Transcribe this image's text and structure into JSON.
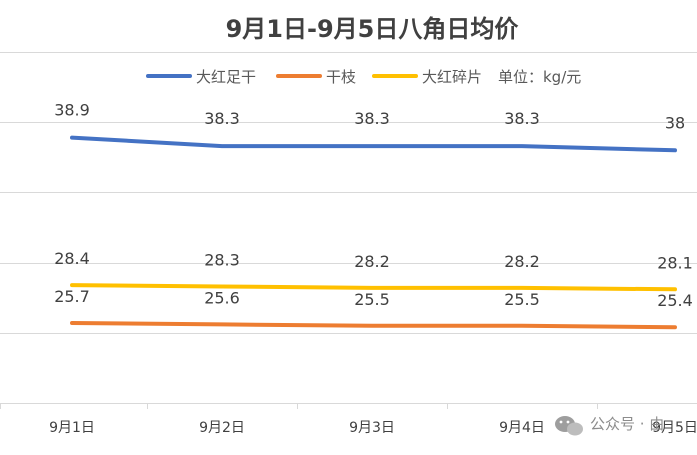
{
  "chart_data": {
    "type": "line",
    "title": "9月1日-9月5日八角日均价",
    "unit_note": "单位：kg/元",
    "categories": [
      "9月1日",
      "9月2日",
      "9月3日",
      "9月4日",
      "9月5日"
    ],
    "series": [
      {
        "name": "大红足干",
        "color": "#4472c4",
        "values": [
          38.9,
          38.3,
          38.3,
          38.3,
          38
        ]
      },
      {
        "name": "干枝",
        "color": "#ed7d31",
        "values": [
          25.7,
          25.6,
          25.5,
          25.5,
          25.4
        ]
      },
      {
        "name": "大红碎片",
        "color": "#ffc000",
        "values": [
          28.4,
          28.3,
          28.2,
          28.2,
          28.1
        ]
      }
    ],
    "data_labels": {
      "大红足干": [
        "38.9",
        "38.3",
        "38.3",
        "38.3",
        "38"
      ],
      "干枝": [
        "25.7",
        "25.6",
        "25.5",
        "25.5",
        "25.4"
      ],
      "大红碎片": [
        "28.4",
        "28.3",
        "28.2",
        "28.2",
        "28.1"
      ]
    },
    "ylim": [
      20,
      45
    ],
    "grid": true,
    "legend_position": "top"
  },
  "watermark": {
    "text": "公众号 · 由",
    "icon": "wechat-icon"
  }
}
